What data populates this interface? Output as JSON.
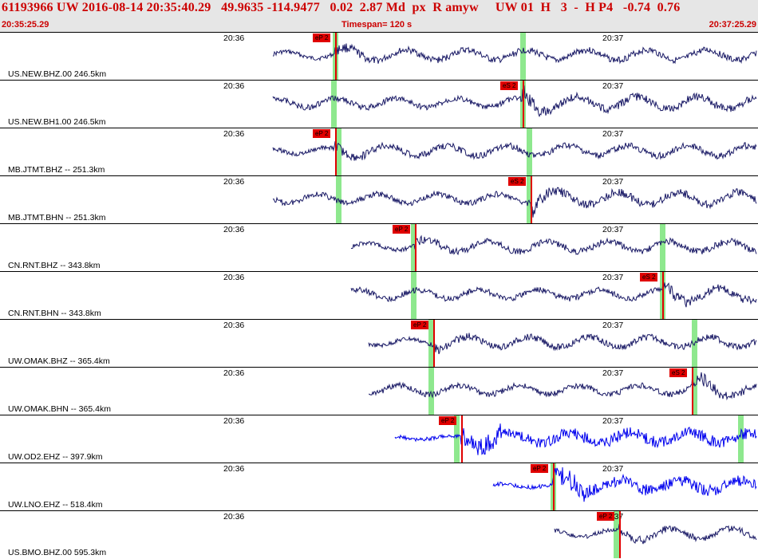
{
  "header": {
    "event_line": "61193966 UW 2016-08-14 20:35:40.29   49.9635 -114.9477   0.02  2.87 Md  px  R amyw     UW 01  H   3  -  H P4   -0.74  0.76",
    "start_time": "20:35:25.29",
    "timespan": "Timespan= 120 s",
    "end_time": "20:37:25.29"
  },
  "colors": {
    "trace": "#1a1a66",
    "trace_ehz": "#0000ee",
    "pick": "#e00000",
    "band": "#8ee88e",
    "header_text": "#cc0000"
  },
  "minute_labels": [
    "20:36",
    "20:37"
  ],
  "traces": [
    {
      "label": "US.NEW.BHZ.00 246.5km",
      "picks": [
        {
          "label": "eP 2"
        }
      ],
      "color": "#1a1a66"
    },
    {
      "label": "US.NEW.BH1.00 246.5km",
      "picks": [
        {
          "label": "eS 2"
        }
      ],
      "color": "#1a1a66"
    },
    {
      "label": "MB.JTMT.BHZ -- 251.3km",
      "picks": [
        {
          "label": "eP 2"
        }
      ],
      "color": "#1a1a66"
    },
    {
      "label": "MB.JTMT.BHN -- 251.3km",
      "picks": [
        {
          "label": "eS 2"
        }
      ],
      "color": "#1a1a66"
    },
    {
      "label": "CN.RNT.BHZ -- 343.8km",
      "picks": [
        {
          "label": "eP 2"
        }
      ],
      "color": "#1a1a66"
    },
    {
      "label": "CN.RNT.BHN -- 343.8km",
      "picks": [
        {
          "label": "eS 2"
        }
      ],
      "color": "#1a1a66"
    },
    {
      "label": "UW.OMAK.BHZ -- 365.4km",
      "picks": [
        {
          "label": "eP 2"
        }
      ],
      "color": "#1a1a66"
    },
    {
      "label": "UW.OMAK.BHN -- 365.4km",
      "picks": [
        {
          "label": "eS 2"
        }
      ],
      "color": "#1a1a66"
    },
    {
      "label": "UW.OD2.EHZ -- 397.9km",
      "picks": [
        {
          "label": "eP 2"
        }
      ],
      "color": "#0000ee"
    },
    {
      "label": "UW.LNO.EHZ -- 518.4km",
      "picks": [
        {
          "label": "eP 2"
        }
      ],
      "color": "#0000ee"
    },
    {
      "label": "US.BMO.BHZ.00 595.3km",
      "picks": [
        {
          "label": "eP 2"
        }
      ],
      "color": "#1a1a66"
    }
  ]
}
